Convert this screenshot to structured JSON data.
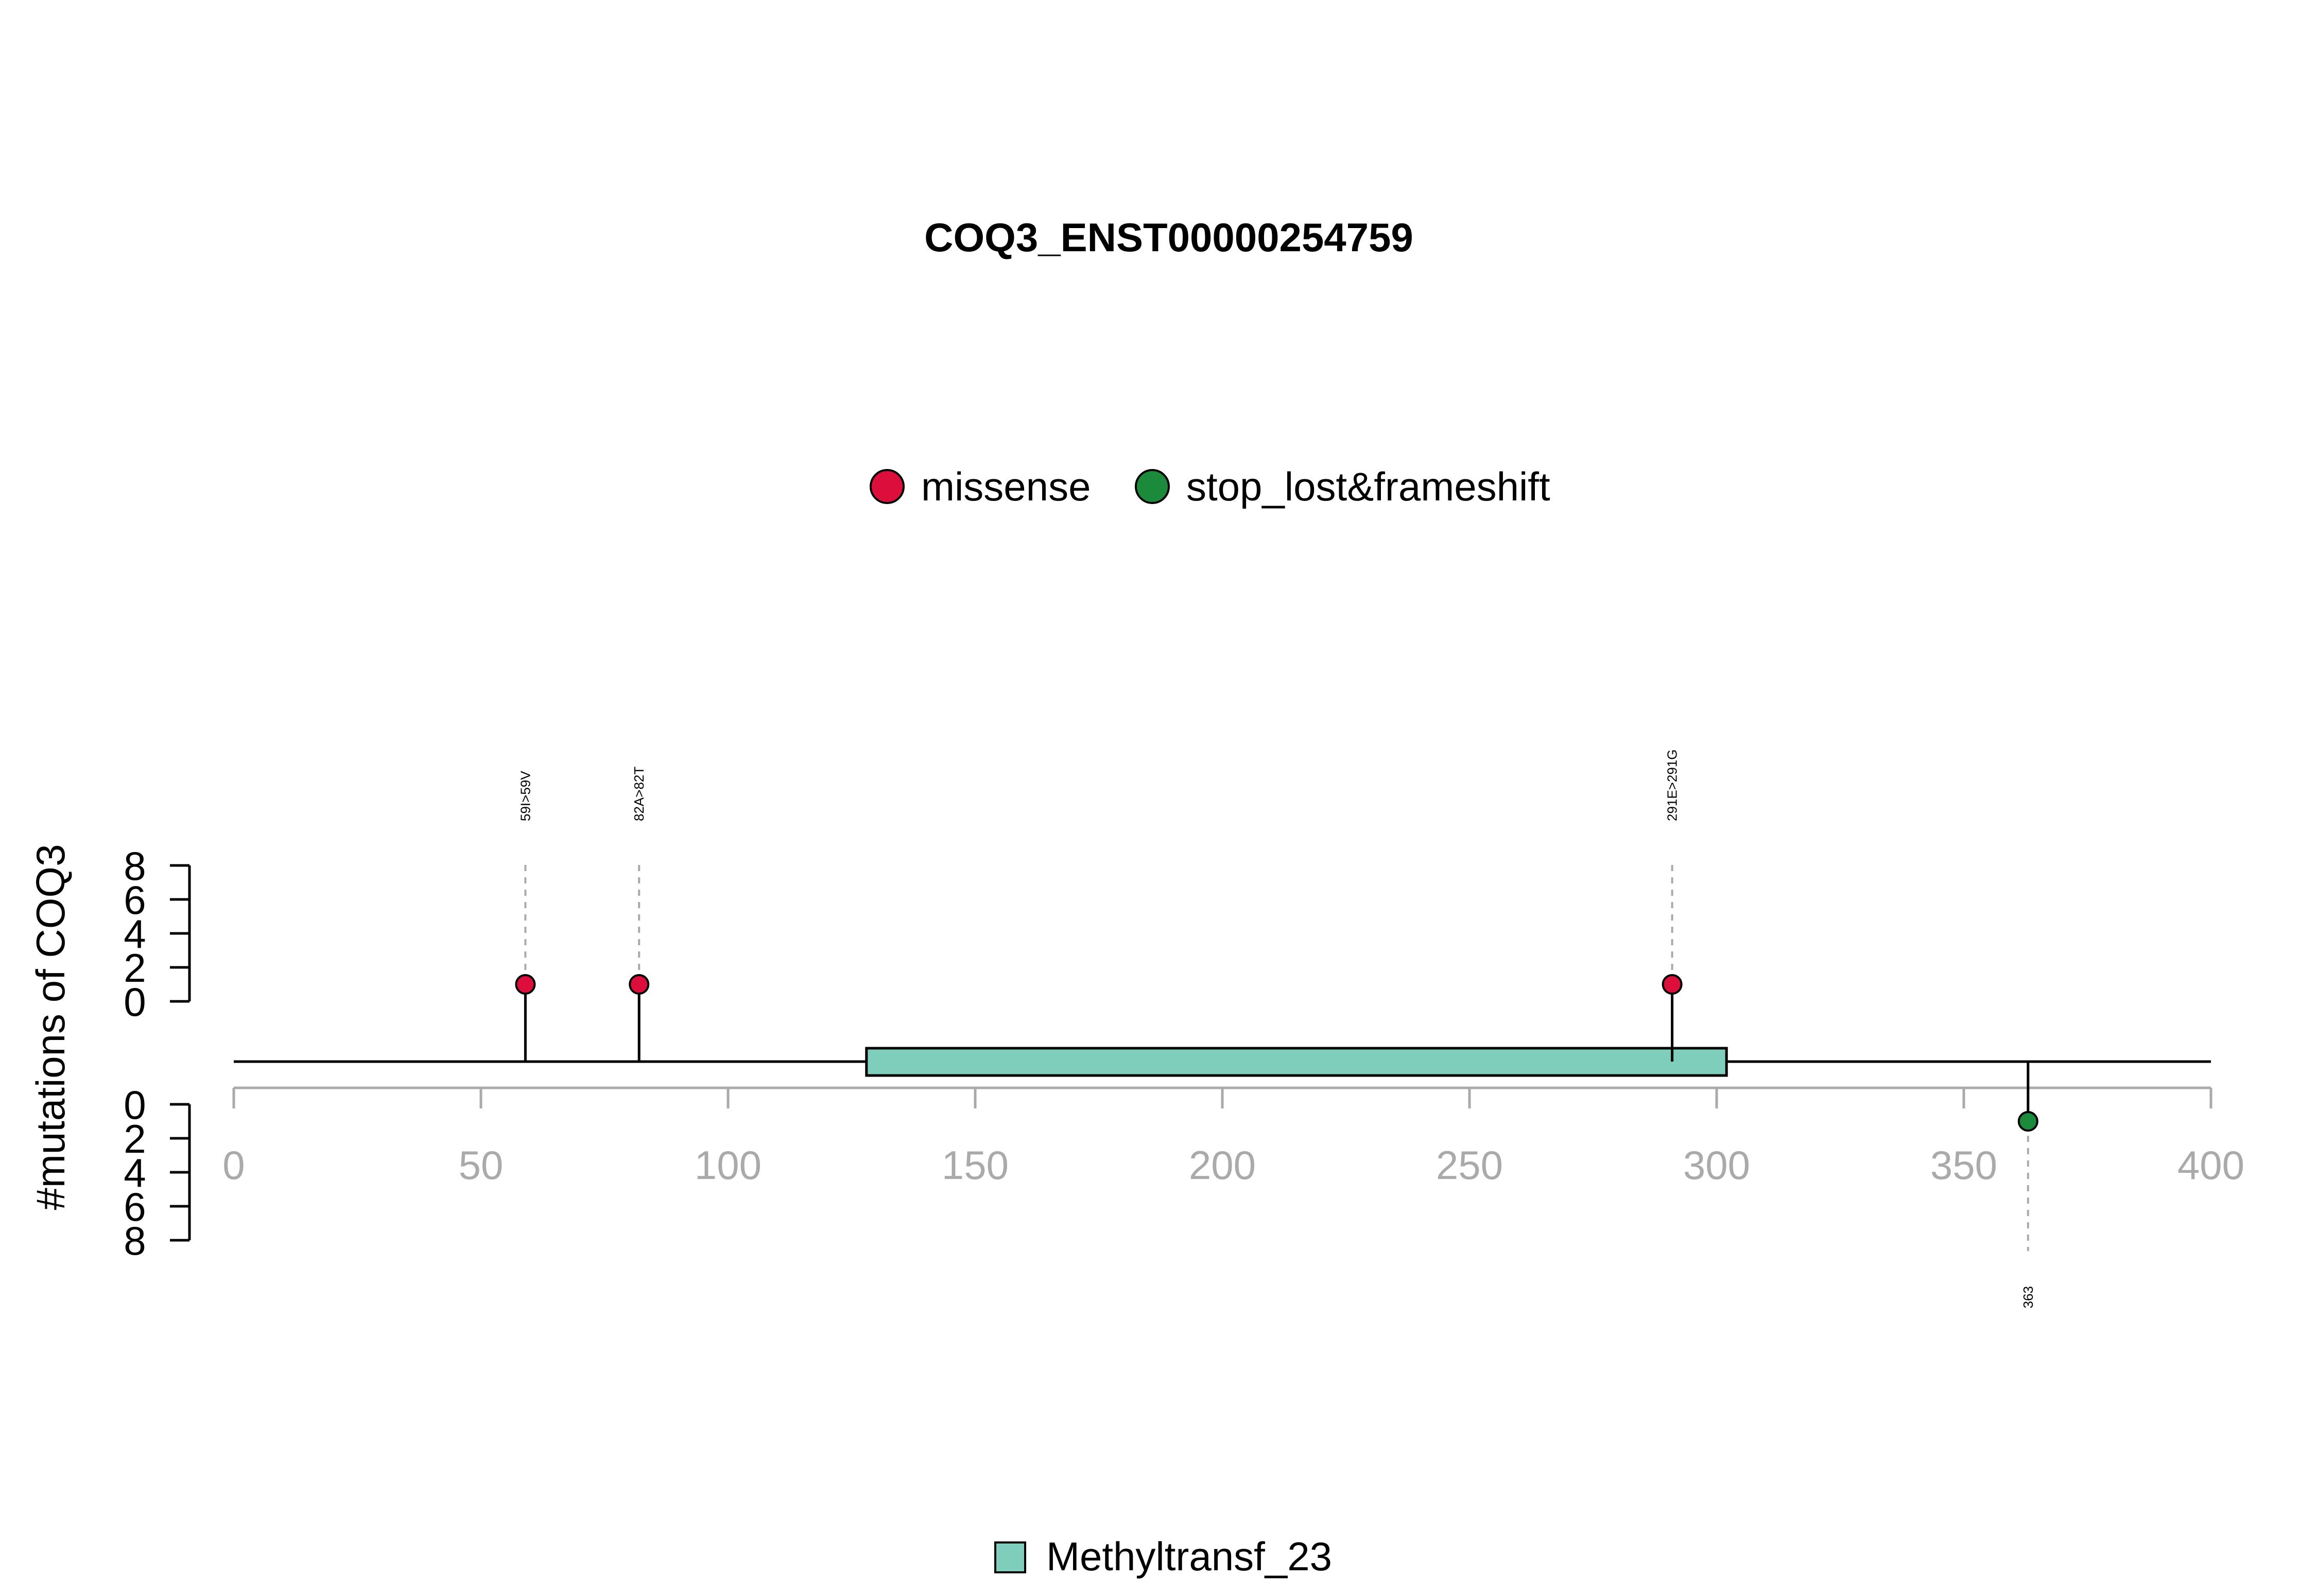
{
  "chart_data": {
    "type": "lollipop",
    "title": "COQ3_ENST00000254759",
    "ylabel": "#mutations of COQ3",
    "xlim": [
      0,
      400
    ],
    "x_ticks": [
      0,
      50,
      100,
      150,
      200,
      250,
      300,
      350,
      400
    ],
    "y_ticks_upper": [
      0,
      2,
      4,
      6,
      8
    ],
    "y_ticks_lower": [
      0,
      2,
      4,
      6,
      8
    ],
    "legend_top": [
      {
        "name": "missense",
        "color": "#DC0F3C"
      },
      {
        "name": "stop_lost&frameshift",
        "color": "#1B8A3B"
      }
    ],
    "mutations": [
      {
        "position": 59,
        "count": 1,
        "label": "59I>59V",
        "type": "missense",
        "side": "upper",
        "color": "#DC0F3C"
      },
      {
        "position": 82,
        "count": 1,
        "label": "82A>82T",
        "type": "missense",
        "side": "upper",
        "color": "#DC0F3C"
      },
      {
        "position": 291,
        "count": 1,
        "label": "291E>291G",
        "type": "missense",
        "side": "upper",
        "color": "#DC0F3C"
      },
      {
        "position": 363,
        "count": 1,
        "label": "363",
        "type": "stop_lost&frameshift",
        "side": "lower",
        "color": "#1B8A3B"
      }
    ],
    "domains": [
      {
        "name": "Methyltransf_23",
        "start": 128,
        "end": 302,
        "color": "#7FCDBB"
      }
    ],
    "colors": {
      "axis_grey": "#AAAAAA",
      "line": "#000000"
    }
  }
}
